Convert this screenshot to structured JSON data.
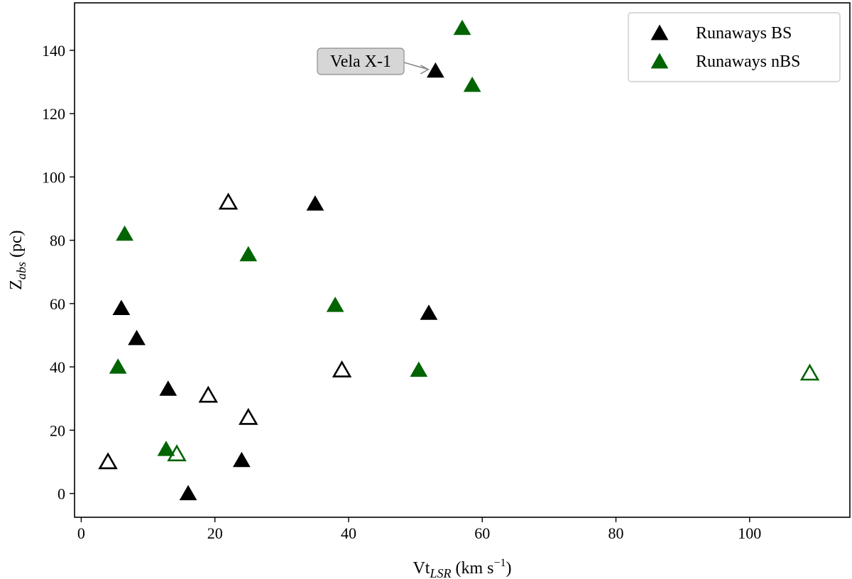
{
  "chart_data": {
    "type": "scatter",
    "xlabel_main": "Vt",
    "xlabel_sub": "LSR",
    "xlabel_unit_pre": " (km s",
    "xlabel_unit_sup": "−1",
    "xlabel_unit_post": ")",
    "ylabel_main": "Z",
    "ylabel_sub": "abs",
    "ylabel_unit": " (pc)",
    "xlim": [
      -1,
      115
    ],
    "ylim": [
      -7.5,
      155
    ],
    "xticks": [
      0,
      20,
      40,
      60,
      80,
      100
    ],
    "xtick_labels": [
      "0",
      "20",
      "40",
      "60",
      "80",
      "100"
    ],
    "yticks": [
      0,
      20,
      40,
      60,
      80,
      100,
      120,
      140
    ],
    "ytick_labels": [
      "0",
      "20",
      "40",
      "60",
      "80",
      "100",
      "120",
      "140"
    ],
    "grid": false,
    "legend_position": "top-right",
    "series": [
      {
        "name": "Runaways BS",
        "color": "#000000",
        "points_filled": [
          {
            "x": 53,
            "y": 133.5
          },
          {
            "x": 35,
            "y": 91.5
          },
          {
            "x": 6,
            "y": 58.5
          },
          {
            "x": 52,
            "y": 57
          },
          {
            "x": 8.3,
            "y": 49
          },
          {
            "x": 13,
            "y": 33
          },
          {
            "x": 24,
            "y": 10.5
          },
          {
            "x": 16,
            "y": 0
          }
        ],
        "points_open": [
          {
            "x": 22,
            "y": 92
          },
          {
            "x": 39,
            "y": 39
          },
          {
            "x": 19,
            "y": 31
          },
          {
            "x": 25,
            "y": 24
          },
          {
            "x": 4,
            "y": 10
          }
        ]
      },
      {
        "name": "Runaways nBS",
        "color": "#006400",
        "points_filled": [
          {
            "x": 57,
            "y": 147
          },
          {
            "x": 58.5,
            "y": 129
          },
          {
            "x": 6.5,
            "y": 82
          },
          {
            "x": 25,
            "y": 75.5
          },
          {
            "x": 38,
            "y": 59.5
          },
          {
            "x": 5.5,
            "y": 40
          },
          {
            "x": 50.5,
            "y": 39
          },
          {
            "x": 12.7,
            "y": 14
          }
        ],
        "points_open": [
          {
            "x": 109,
            "y": 38
          },
          {
            "x": 14.3,
            "y": 12.5
          }
        ]
      }
    ],
    "annotation": {
      "text": "Vela X-1",
      "x": 53,
      "y": 133.5
    }
  }
}
